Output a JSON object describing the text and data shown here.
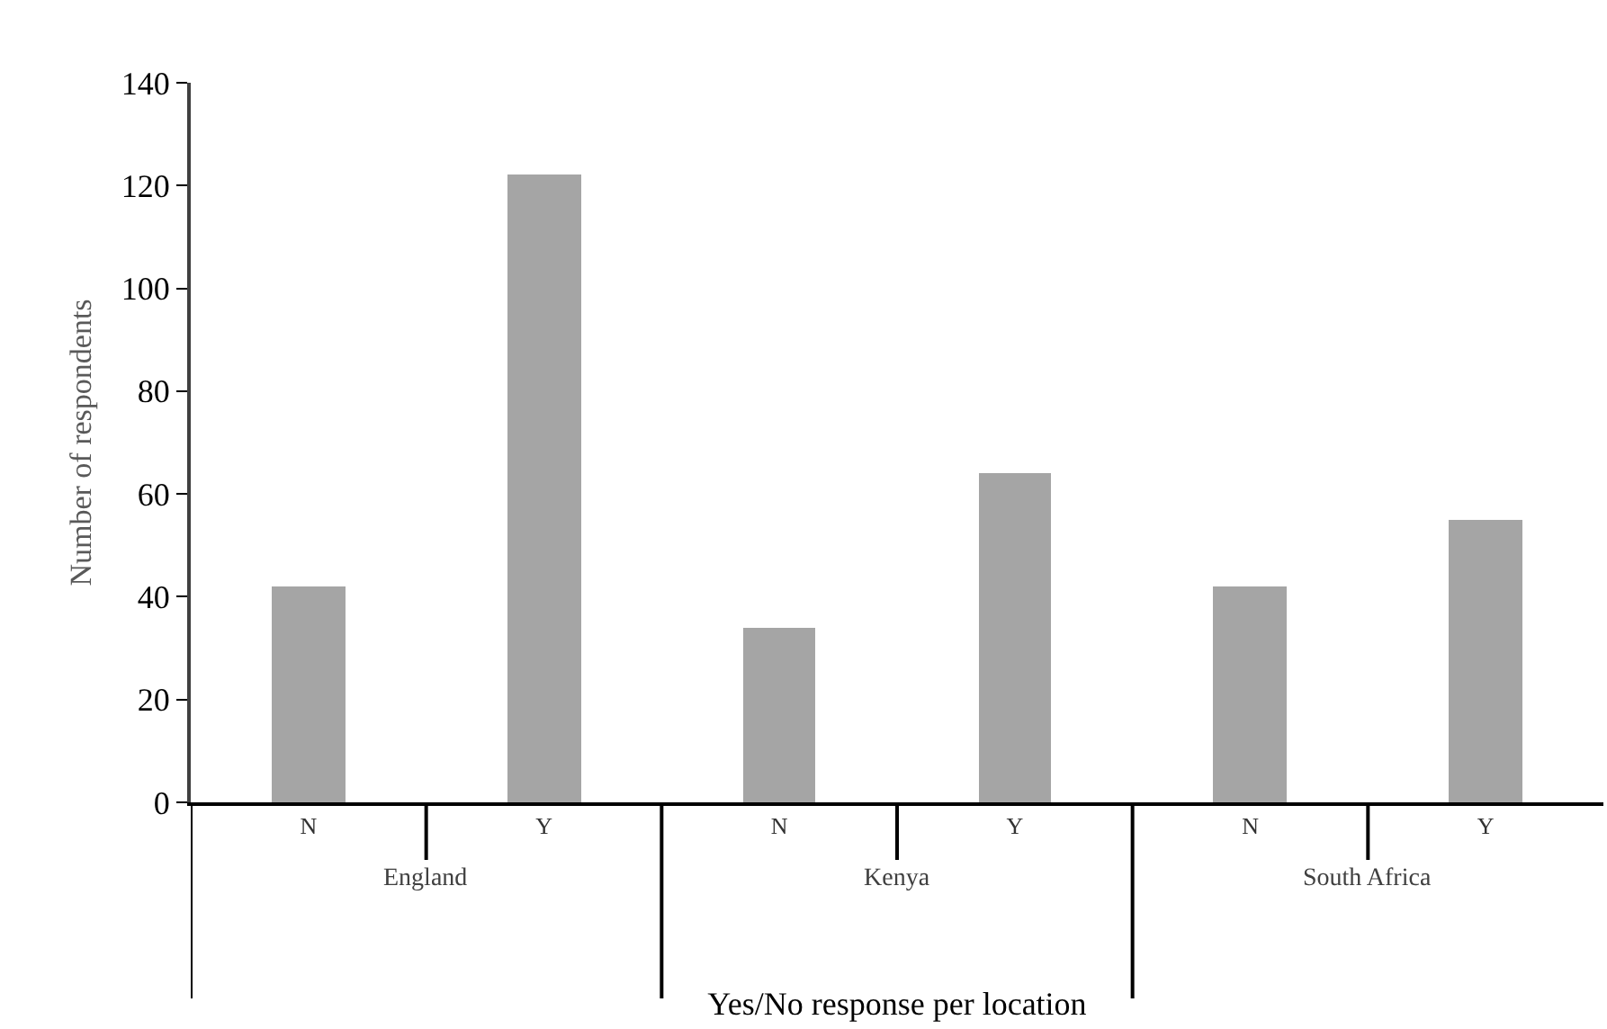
{
  "chart_data": {
    "type": "bar",
    "xlabel": "Yes/No response per location",
    "ylabel": "Number of respondents",
    "categories": [
      "N",
      "Y",
      "N",
      "Y",
      "N",
      "Y"
    ],
    "values": [
      42,
      122,
      34,
      64,
      42,
      55
    ],
    "color": "#a5a5a5",
    "ylim": [
      0,
      140
    ],
    "yticks": [
      0,
      20,
      40,
      60,
      80,
      100,
      120,
      140
    ],
    "annotations": [
      "England",
      "Kenya",
      "South Africa"
    ]
  }
}
